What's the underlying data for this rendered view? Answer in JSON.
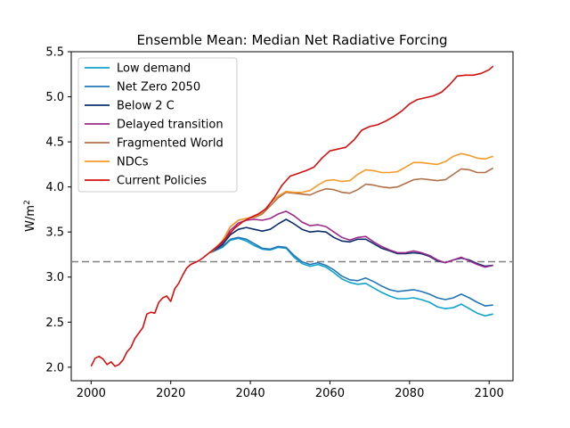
{
  "chart_data": {
    "type": "line",
    "title": "Ensemble Mean: Median Net Radiative Forcing",
    "xlabel": "",
    "ylabel": "W/m",
    "ylabel_superscript": "2",
    "xlim": [
      1995,
      2106
    ],
    "ylim": [
      1.85,
      5.5
    ],
    "xticks": [
      2000,
      2020,
      2040,
      2060,
      2080,
      2100
    ],
    "yticks": [
      2.0,
      2.5,
      3.0,
      3.5,
      4.0,
      4.5,
      5.0,
      5.5
    ],
    "ytick_labels": [
      "2.0",
      "2.5",
      "3.0",
      "3.5",
      "4.0",
      "4.5",
      "5.0",
      "5.5"
    ],
    "grid": false,
    "legend_position": "upper-left",
    "reference_line": {
      "y": 3.17,
      "style": "dashed",
      "color": "#808080"
    },
    "series": [
      {
        "name": "Low demand",
        "color": "#0fa3cc",
        "x": [
          2030,
          2033,
          2035,
          2037,
          2039,
          2041,
          2043,
          2045,
          2047,
          2049,
          2051,
          2053,
          2055,
          2057,
          2059,
          2061,
          2063,
          2065,
          2067,
          2069,
          2071,
          2073,
          2075,
          2077,
          2079,
          2081,
          2083,
          2085,
          2087,
          2089,
          2091,
          2093,
          2095,
          2097,
          2099,
          2101
        ],
        "y": [
          3.27,
          3.33,
          3.41,
          3.43,
          3.4,
          3.35,
          3.31,
          3.3,
          3.33,
          3.32,
          3.22,
          3.15,
          3.12,
          3.14,
          3.11,
          3.05,
          2.98,
          2.94,
          2.92,
          2.93,
          2.88,
          2.83,
          2.79,
          2.76,
          2.76,
          2.77,
          2.75,
          2.72,
          2.67,
          2.65,
          2.66,
          2.7,
          2.65,
          2.6,
          2.57,
          2.59
        ]
      },
      {
        "name": "Net Zero 2050",
        "color": "#2276b7",
        "x": [
          2030,
          2033,
          2035,
          2037,
          2039,
          2041,
          2043,
          2045,
          2047,
          2049,
          2051,
          2053,
          2055,
          2057,
          2059,
          2061,
          2063,
          2065,
          2067,
          2069,
          2071,
          2073,
          2075,
          2077,
          2079,
          2081,
          2083,
          2085,
          2087,
          2089,
          2091,
          2093,
          2095,
          2097,
          2099,
          2101
        ],
        "y": [
          3.27,
          3.34,
          3.42,
          3.44,
          3.42,
          3.37,
          3.32,
          3.31,
          3.34,
          3.33,
          3.24,
          3.17,
          3.14,
          3.16,
          3.13,
          3.08,
          3.01,
          2.97,
          2.96,
          2.99,
          2.95,
          2.9,
          2.86,
          2.84,
          2.85,
          2.86,
          2.84,
          2.81,
          2.77,
          2.75,
          2.77,
          2.81,
          2.77,
          2.72,
          2.68,
          2.69
        ]
      },
      {
        "name": "Below 2 C",
        "color": "#0a2e6b",
        "x": [
          2030,
          2033,
          2035,
          2037,
          2039,
          2041,
          2043,
          2045,
          2047,
          2049,
          2051,
          2053,
          2055,
          2057,
          2059,
          2061,
          2063,
          2065,
          2067,
          2069,
          2071,
          2073,
          2075,
          2077,
          2079,
          2081,
          2083,
          2085,
          2087,
          2089,
          2091,
          2093,
          2095,
          2097,
          2099,
          2101
        ],
        "y": [
          3.27,
          3.36,
          3.47,
          3.53,
          3.55,
          3.53,
          3.51,
          3.53,
          3.59,
          3.64,
          3.59,
          3.53,
          3.5,
          3.51,
          3.5,
          3.44,
          3.4,
          3.39,
          3.42,
          3.42,
          3.37,
          3.32,
          3.29,
          3.26,
          3.26,
          3.27,
          3.26,
          3.23,
          3.18,
          3.16,
          3.19,
          3.21,
          3.19,
          3.15,
          3.12,
          3.13
        ]
      },
      {
        "name": "Delayed transition",
        "color": "#9e2a8b",
        "x": [
          2030,
          2033,
          2035,
          2037,
          2039,
          2041,
          2043,
          2045,
          2047,
          2049,
          2051,
          2053,
          2055,
          2057,
          2059,
          2061,
          2063,
          2065,
          2067,
          2069,
          2071,
          2073,
          2075,
          2077,
          2079,
          2081,
          2083,
          2085,
          2087,
          2089,
          2091,
          2093,
          2095,
          2097,
          2099,
          2101
        ],
        "y": [
          3.27,
          3.38,
          3.52,
          3.6,
          3.63,
          3.64,
          3.63,
          3.65,
          3.7,
          3.73,
          3.68,
          3.61,
          3.57,
          3.58,
          3.56,
          3.5,
          3.44,
          3.41,
          3.44,
          3.45,
          3.39,
          3.34,
          3.3,
          3.27,
          3.27,
          3.29,
          3.27,
          3.24,
          3.19,
          3.16,
          3.19,
          3.22,
          3.18,
          3.14,
          3.11,
          3.13
        ]
      },
      {
        "name": "Fragmented World",
        "color": "#b07048",
        "x": [
          2030,
          2033,
          2035,
          2037,
          2039,
          2041,
          2043,
          2045,
          2047,
          2049,
          2051,
          2053,
          2055,
          2057,
          2059,
          2061,
          2063,
          2065,
          2067,
          2069,
          2071,
          2073,
          2075,
          2077,
          2079,
          2081,
          2083,
          2085,
          2087,
          2089,
          2091,
          2093,
          2095,
          2097,
          2099,
          2101
        ],
        "y": [
          3.27,
          3.4,
          3.56,
          3.63,
          3.65,
          3.66,
          3.7,
          3.79,
          3.88,
          3.94,
          3.93,
          3.92,
          3.91,
          3.95,
          3.98,
          3.97,
          3.94,
          3.93,
          3.97,
          4.03,
          4.02,
          4.0,
          3.99,
          4.0,
          4.04,
          4.08,
          4.09,
          4.08,
          4.07,
          4.08,
          4.14,
          4.2,
          4.19,
          4.16,
          4.16,
          4.21
        ]
      },
      {
        "name": "NDCs",
        "color": "#f49a2a",
        "x": [
          2030,
          2033,
          2035,
          2037,
          2039,
          2041,
          2043,
          2045,
          2047,
          2049,
          2051,
          2053,
          2055,
          2057,
          2059,
          2061,
          2063,
          2065,
          2067,
          2069,
          2071,
          2073,
          2075,
          2077,
          2079,
          2081,
          2083,
          2085,
          2087,
          2089,
          2091,
          2093,
          2095,
          2097,
          2099,
          2101
        ],
        "y": [
          3.27,
          3.4,
          3.56,
          3.63,
          3.65,
          3.67,
          3.72,
          3.82,
          3.9,
          3.95,
          3.94,
          3.94,
          3.96,
          4.02,
          4.07,
          4.08,
          4.06,
          4.07,
          4.14,
          4.19,
          4.18,
          4.16,
          4.16,
          4.17,
          4.22,
          4.27,
          4.27,
          4.26,
          4.25,
          4.28,
          4.34,
          4.37,
          4.35,
          4.32,
          4.31,
          4.34
        ]
      },
      {
        "name": "Current Policies",
        "color": "#d40f0f",
        "x": [
          2000,
          2001,
          2002,
          2003,
          2004,
          2005,
          2006,
          2007,
          2008,
          2009,
          2010,
          2011,
          2012,
          2013,
          2014,
          2015,
          2016,
          2017,
          2018,
          2019,
          2020,
          2021,
          2022,
          2023,
          2024,
          2025,
          2026,
          2027,
          2028,
          2030,
          2032,
          2034,
          2036,
          2038,
          2040,
          2042,
          2044,
          2046,
          2048,
          2050,
          2052,
          2054,
          2056,
          2058,
          2060,
          2062,
          2064,
          2066,
          2068,
          2070,
          2072,
          2074,
          2076,
          2078,
          2080,
          2082,
          2084,
          2086,
          2088,
          2090,
          2092,
          2094,
          2096,
          2098,
          2100,
          2101
        ],
        "y": [
          2.01,
          2.1,
          2.12,
          2.09,
          2.03,
          2.06,
          2.01,
          2.03,
          2.08,
          2.17,
          2.22,
          2.32,
          2.38,
          2.44,
          2.59,
          2.61,
          2.6,
          2.72,
          2.77,
          2.79,
          2.73,
          2.87,
          2.93,
          3.02,
          3.1,
          3.14,
          3.16,
          3.18,
          3.21,
          3.28,
          3.35,
          3.44,
          3.54,
          3.61,
          3.66,
          3.7,
          3.76,
          3.88,
          4.02,
          4.12,
          4.15,
          4.18,
          4.22,
          4.32,
          4.4,
          4.42,
          4.44,
          4.52,
          4.63,
          4.67,
          4.69,
          4.73,
          4.78,
          4.84,
          4.92,
          4.97,
          4.99,
          5.01,
          5.05,
          5.13,
          5.23,
          5.24,
          5.24,
          5.26,
          5.3,
          5.34
        ]
      }
    ]
  }
}
